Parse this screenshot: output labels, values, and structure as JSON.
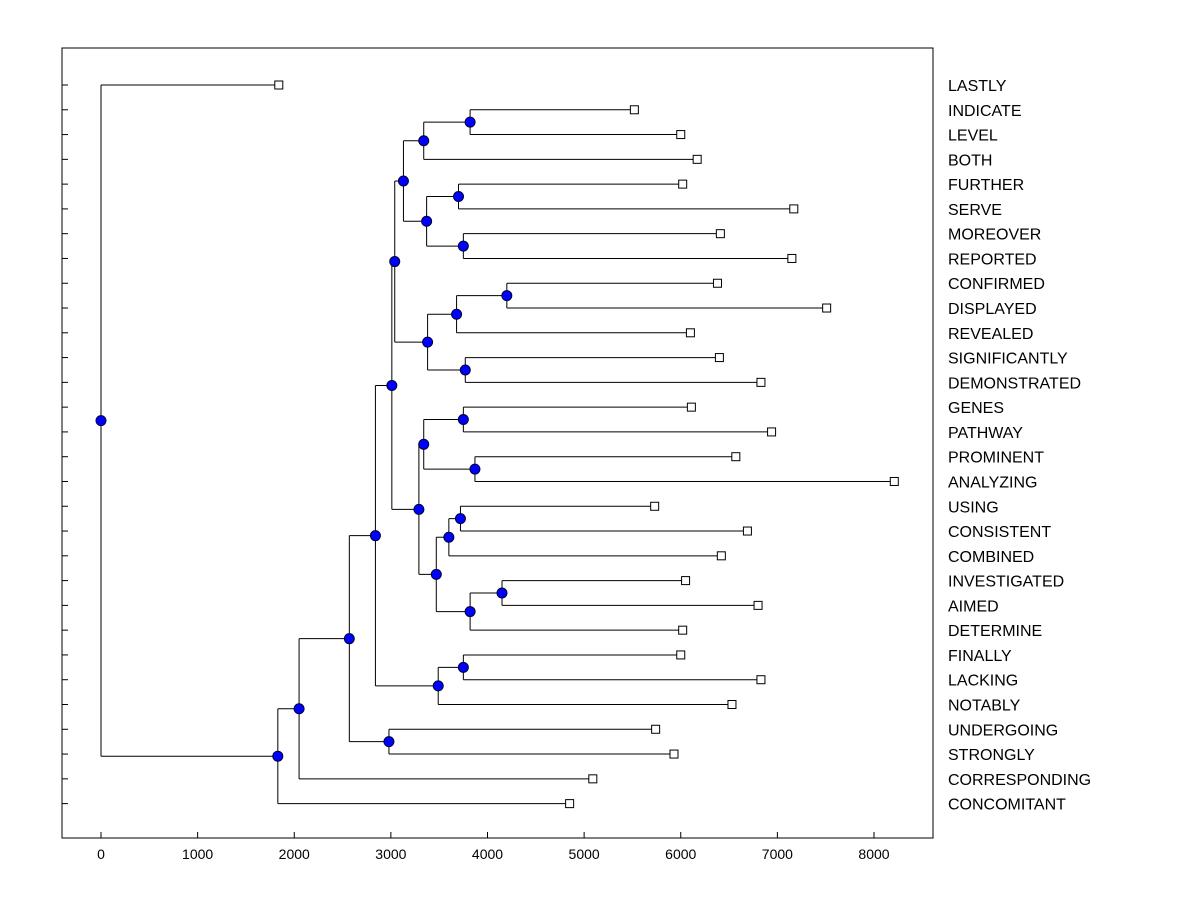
{
  "chart_data": {
    "type": "dendrogram",
    "orientation": "horizontal",
    "title": "",
    "xlabel": "",
    "ylabel": "",
    "xlim": [
      -400,
      8600
    ],
    "x_ticks": [
      0,
      1000,
      2000,
      3000,
      4000,
      5000,
      6000,
      7000,
      8000
    ],
    "grid": false,
    "colors": {
      "node_fill": "#0000ff",
      "node_stroke": "#000033",
      "leaf_fill": "#ffffff",
      "line": "#000000"
    },
    "leaves": [
      {
        "label": "LASTLY",
        "x": 1840
      },
      {
        "label": "INDICATE",
        "x": 5520
      },
      {
        "label": "LEVEL",
        "x": 6000
      },
      {
        "label": "BOTH",
        "x": 6170
      },
      {
        "label": "FURTHER",
        "x": 6020
      },
      {
        "label": "SERVE",
        "x": 7170
      },
      {
        "label": "MOREOVER",
        "x": 6410
      },
      {
        "label": "REPORTED",
        "x": 7150
      },
      {
        "label": "CONFIRMED",
        "x": 6380
      },
      {
        "label": "DISPLAYED",
        "x": 7510
      },
      {
        "label": "REVEALED",
        "x": 6100
      },
      {
        "label": "SIGNIFICANTLY",
        "x": 6400
      },
      {
        "label": "DEMONSTRATED",
        "x": 6830
      },
      {
        "label": "GENES",
        "x": 6110
      },
      {
        "label": "PATHWAY",
        "x": 6940
      },
      {
        "label": "PROMINENT",
        "x": 6570
      },
      {
        "label": "ANALYZING",
        "x": 8210
      },
      {
        "label": "USING",
        "x": 5730
      },
      {
        "label": "CONSISTENT",
        "x": 6690
      },
      {
        "label": "COMBINED",
        "x": 6420
      },
      {
        "label": "INVESTIGATED",
        "x": 6050
      },
      {
        "label": "AIMED",
        "x": 6800
      },
      {
        "label": "DETERMINE",
        "x": 6020
      },
      {
        "label": "FINALLY",
        "x": 6000
      },
      {
        "label": "LACKING",
        "x": 6830
      },
      {
        "label": "NOTABLY",
        "x": 6530
      },
      {
        "label": "UNDERGOING",
        "x": 5740
      },
      {
        "label": "STRONGLY",
        "x": 5930
      },
      {
        "label": "CORRESPONDING",
        "x": 5090
      },
      {
        "label": "CONCOMITANT",
        "x": 4850
      }
    ],
    "merges": [
      {
        "id": "n1",
        "x": 3820,
        "children": [
          1,
          2
        ]
      },
      {
        "id": "n2",
        "x": 3340,
        "children": [
          "n1",
          3
        ]
      },
      {
        "id": "n3",
        "x": 3700,
        "children": [
          4,
          5
        ]
      },
      {
        "id": "n4",
        "x": 3750,
        "children": [
          6,
          7
        ]
      },
      {
        "id": "n5",
        "x": 3370,
        "children": [
          "n3",
          "n4"
        ]
      },
      {
        "id": "n6",
        "x": 3130,
        "children": [
          "n2",
          "n5"
        ]
      },
      {
        "id": "n7",
        "x": 4200,
        "children": [
          8,
          9
        ]
      },
      {
        "id": "n8",
        "x": 3680,
        "children": [
          "n7",
          10
        ]
      },
      {
        "id": "n9",
        "x": 3770,
        "children": [
          11,
          12
        ]
      },
      {
        "id": "n10",
        "x": 3380,
        "children": [
          "n8",
          "n9"
        ]
      },
      {
        "id": "n11",
        "x": 3040,
        "children": [
          "n6",
          "n10"
        ]
      },
      {
        "id": "n12",
        "x": 3750,
        "children": [
          13,
          14
        ]
      },
      {
        "id": "n13",
        "x": 3870,
        "children": [
          15,
          16
        ]
      },
      {
        "id": "n14",
        "x": 3340,
        "children": [
          "n12",
          "n13"
        ]
      },
      {
        "id": "n15",
        "x": 3720,
        "children": [
          17,
          18
        ]
      },
      {
        "id": "n16",
        "x": 3600,
        "children": [
          "n15",
          19
        ]
      },
      {
        "id": "n17",
        "x": 4150,
        "children": [
          20,
          21
        ]
      },
      {
        "id": "n18",
        "x": 3820,
        "children": [
          "n17",
          22
        ]
      },
      {
        "id": "n19",
        "x": 3470,
        "children": [
          "n16",
          "n18"
        ]
      },
      {
        "id": "n20",
        "x": 3290,
        "children": [
          "n14",
          "n19"
        ]
      },
      {
        "id": "n21",
        "x": 3010,
        "children": [
          "n11",
          "n20"
        ]
      },
      {
        "id": "n22",
        "x": 3750,
        "children": [
          23,
          24
        ]
      },
      {
        "id": "n23",
        "x": 3490,
        "children": [
          "n22",
          25
        ]
      },
      {
        "id": "n24",
        "x": 2840,
        "children": [
          "n21",
          "n23"
        ]
      },
      {
        "id": "n25",
        "x": 2980,
        "children": [
          26,
          27
        ]
      },
      {
        "id": "n26",
        "x": 2570,
        "children": [
          "n24",
          "n25"
        ]
      },
      {
        "id": "n27",
        "x": 2050,
        "children": [
          "n26",
          28
        ]
      },
      {
        "id": "n28",
        "x": 1830,
        "children": [
          "n27",
          29
        ]
      },
      {
        "id": "root",
        "x": 0,
        "children": [
          0,
          "n28"
        ]
      }
    ]
  }
}
